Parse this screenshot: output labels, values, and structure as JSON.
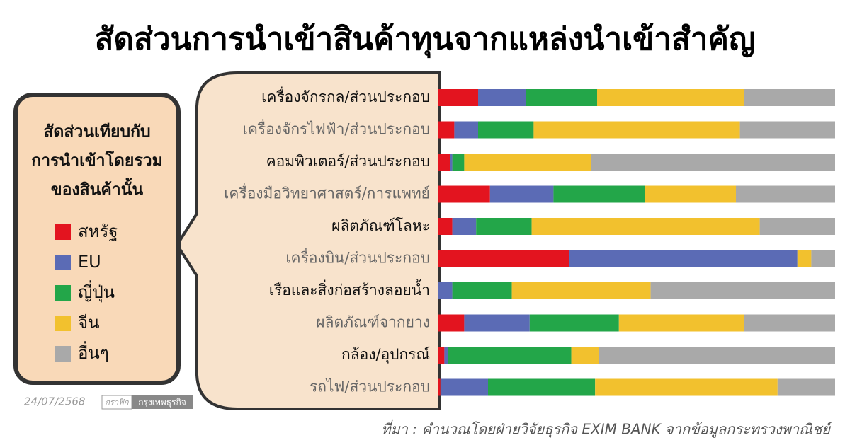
{
  "chart_data": {
    "type": "stacked-bar-horizontal",
    "title": "สัดส่วนการนำเข้าสินค้าทุนจากแหล่งนำเข้าสำคัญ",
    "legend_title": [
      "สัดส่วนเทียบกับ",
      "การนำเข้าโดยรวม",
      "ของสินค้านั้น"
    ],
    "categories": [
      "เครื่องจักรกล/ส่วนประกอบ",
      "เครื่องจักรไฟฟ้า/ส่วนประกอบ",
      "คอมพิวเตอร์/ส่วนประกอบ",
      "เครื่องมือวิทยาศาสตร์/การแพทย์",
      "ผลิตภัณฑ์โลหะ",
      "เครื่องบิน/ส่วนประกอบ",
      "เรือและสิ่งก่อสร้างลอยน้ำ",
      "ผลิตภัณฑ์จากยาง",
      "กล้อง/อุปกรณ์",
      "รถไฟ/ส่วนประกอบ"
    ],
    "series": [
      {
        "name": "สหรัฐ",
        "color": "#e3141f",
        "values": [
          10,
          4,
          3,
          13,
          3.5,
          33,
          0,
          6.5,
          1.5,
          0.5
        ]
      },
      {
        "name": "EU",
        "color": "#5b6bb5",
        "values": [
          12,
          6,
          0.5,
          16,
          6,
          57.5,
          3.5,
          16.5,
          1,
          12
        ]
      },
      {
        "name": "ญี่ปุ่น",
        "color": "#23a649",
        "values": [
          18,
          14,
          3,
          23,
          14,
          0,
          15,
          22.5,
          31,
          27
        ]
      },
      {
        "name": "จีน",
        "color": "#f2c12e",
        "values": [
          37,
          52,
          32,
          23,
          57.5,
          3.5,
          35,
          31.5,
          7,
          46
        ]
      },
      {
        "name": "อื่นๆ",
        "color": "#a9a9a9",
        "values": [
          23,
          24,
          61.5,
          25,
          19,
          6,
          46.5,
          23,
          59.5,
          14.5
        ]
      }
    ],
    "xlim": [
      0,
      100
    ],
    "date": "24/07/2568",
    "credit_label": "กราฟิก",
    "credit": "กรุงเทพธุรกิจ",
    "source": "ที่มา : คำนวณโดยฝ่ายวิจัยธุรกิจ EXIM BANK จากข้อมูลกระทรวงพาณิชย์"
  }
}
